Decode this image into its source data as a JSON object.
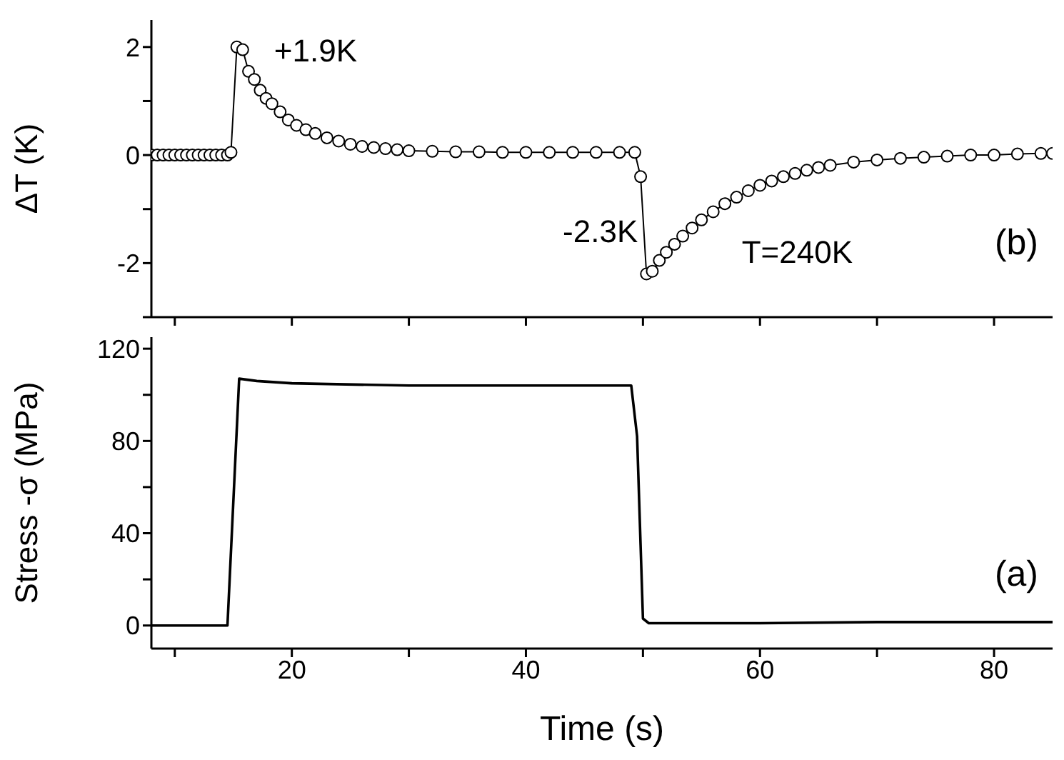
{
  "chart_data": [
    {
      "type": "line",
      "ylabel": "ΔT (K)",
      "marker": "circle",
      "tick_labels": "y",
      "x": [
        8,
        8.5,
        9,
        9.5,
        10,
        10.5,
        11,
        11.5,
        12,
        12.5,
        13,
        13.5,
        14,
        14.5,
        14.8,
        15.3,
        15.8,
        16.3,
        16.8,
        17.3,
        17.8,
        18.3,
        19,
        19.7,
        20.4,
        21.2,
        22,
        23,
        24,
        25,
        26,
        27,
        28,
        29,
        30,
        32,
        34,
        36,
        38,
        40,
        42,
        44,
        46,
        48,
        49.3,
        49.8,
        50.3,
        50.8,
        51.4,
        52,
        52.7,
        53.4,
        54.2,
        55,
        56,
        57,
        58,
        59,
        60,
        61,
        62,
        63,
        64,
        65,
        66,
        68,
        70,
        72,
        74,
        76,
        78,
        80,
        82,
        84,
        85
      ],
      "series": [
        {
          "color": "#000000",
          "values": [
            0,
            0,
            0,
            0,
            0,
            0,
            0,
            0,
            0,
            0,
            0,
            0,
            0,
            0,
            0.05,
            2.0,
            1.95,
            1.55,
            1.4,
            1.2,
            1.05,
            0.95,
            0.8,
            0.65,
            0.55,
            0.47,
            0.4,
            0.32,
            0.26,
            0.2,
            0.16,
            0.14,
            0.12,
            0.1,
            0.08,
            0.07,
            0.06,
            0.06,
            0.05,
            0.05,
            0.05,
            0.05,
            0.05,
            0.05,
            0.05,
            -0.4,
            -2.2,
            -2.15,
            -1.95,
            -1.8,
            -1.65,
            -1.5,
            -1.35,
            -1.2,
            -1.05,
            -0.9,
            -0.78,
            -0.66,
            -0.56,
            -0.48,
            -0.4,
            -0.34,
            -0.28,
            -0.23,
            -0.19,
            -0.13,
            -0.09,
            -0.06,
            -0.04,
            -0.02,
            0,
            0,
            0.02,
            0.03,
            0.03
          ]
        }
      ],
      "xlim": [
        8,
        85
      ],
      "xticks": [
        10,
        20,
        30,
        40,
        50,
        60,
        70,
        80
      ],
      "ylim": [
        -3,
        2.5
      ],
      "yticks": [
        {
          "value": -3,
          "label": null
        },
        -2,
        {
          "value": -1,
          "label": null
        },
        0,
        {
          "value": 1,
          "label": null
        },
        2
      ],
      "annotations": [
        {
          "text": "+1.9K",
          "x": 15.8,
          "y": 1.95
        },
        {
          "text": "-2.3K",
          "x": 50.3,
          "y": -2.2
        },
        "T=240K",
        "(b)"
      ]
    },
    {
      "type": "line",
      "xlabel": "Time (s)",
      "ylabel": "Stress -σ (MPa)",
      "marker": "none",
      "x": [
        8,
        14.5,
        15.5,
        17,
        20,
        30,
        40,
        49,
        49.5,
        50,
        50.5,
        51,
        60,
        70,
        85
      ],
      "series": [
        {
          "color": "#000000",
          "values": [
            0,
            0,
            107,
            106,
            105,
            104,
            104,
            104,
            82,
            3,
            1,
            1,
            1,
            1.5,
            1.5
          ]
        }
      ],
      "xlim": [
        8,
        85
      ],
      "xticks": [
        {
          "value": 10,
          "label": null
        },
        20,
        {
          "value": 30,
          "label": null
        },
        40,
        {
          "value": 50,
          "label": null
        },
        60,
        {
          "value": 70,
          "label": null
        },
        80
      ],
      "ylim": [
        -10,
        125
      ],
      "yticks": [
        0,
        {
          "value": 20,
          "label": null
        },
        40,
        {
          "value": 60,
          "label": null
        },
        80,
        {
          "value": 100,
          "label": null
        },
        120
      ],
      "annotations": [
        "(a)"
      ]
    }
  ]
}
